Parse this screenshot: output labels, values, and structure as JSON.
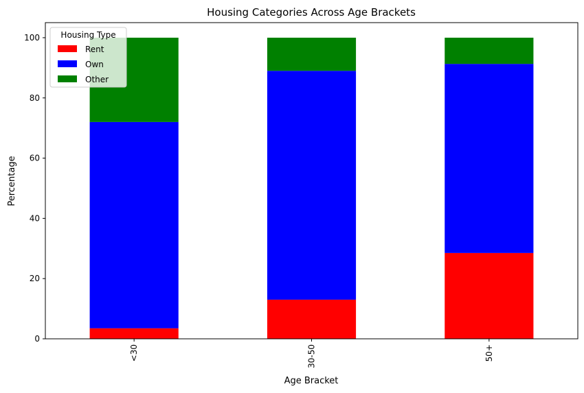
{
  "chart_data": {
    "type": "bar",
    "stacked": true,
    "title": "Housing Categories Across Age Brackets",
    "xlabel": "Age Bracket",
    "ylabel": "Percentage",
    "categories": [
      "<30",
      "30-50",
      "50+"
    ],
    "series": [
      {
        "name": "Rent",
        "color": "#ff0000",
        "values": [
          3.5,
          13.0,
          28.5
        ]
      },
      {
        "name": "Own",
        "color": "#0000ff",
        "values": [
          68.5,
          76.0,
          62.8
        ]
      },
      {
        "name": "Other",
        "color": "#008000",
        "values": [
          28.0,
          11.0,
          8.7
        ]
      }
    ],
    "ylim": [
      0,
      105
    ],
    "yticks": [
      0,
      20,
      40,
      60,
      80,
      100
    ],
    "xtick_rotation": 90,
    "grid": false,
    "legend": {
      "title": "Housing Type",
      "placement": "top-left"
    }
  }
}
